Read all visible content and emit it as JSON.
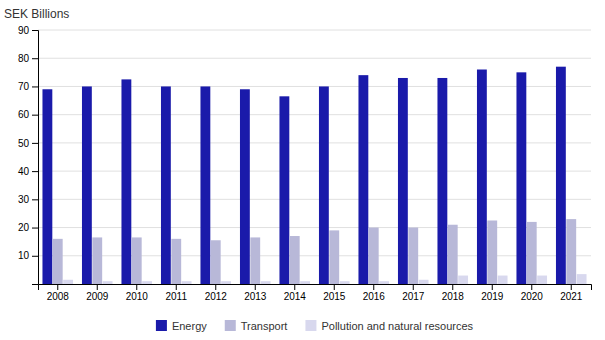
{
  "chart_data": {
    "type": "bar",
    "ylabel": "SEK Billions",
    "categories": [
      "2008",
      "2009",
      "2010",
      "2011",
      "2012",
      "2013",
      "2014",
      "2015",
      "2016",
      "2017",
      "2018",
      "2019",
      "2020",
      "2021"
    ],
    "series": [
      {
        "name": "Energy",
        "color": "#1a1aaa",
        "values": [
          69,
          70,
          72.5,
          70,
          70,
          69,
          66.5,
          70,
          74,
          73,
          73,
          76,
          75,
          77
        ]
      },
      {
        "name": "Transport",
        "color": "#b8b8d8",
        "values": [
          16,
          16.5,
          16.5,
          16,
          15.5,
          16.5,
          17,
          19,
          20,
          20,
          21,
          22.5,
          22,
          23
        ]
      },
      {
        "name": "Pollution and natural resources",
        "color": "#d8d8ee",
        "values": [
          1.5,
          1.0,
          1.0,
          1.0,
          1.0,
          1.0,
          1.0,
          1.0,
          1.0,
          1.5,
          3.0,
          3.0,
          3.0,
          3.5
        ]
      }
    ],
    "ylim": [
      0,
      90
    ],
    "yticks": [
      10,
      20,
      30,
      40,
      50,
      60,
      70,
      80,
      90
    ],
    "grid": true,
    "legend": "bottom"
  }
}
